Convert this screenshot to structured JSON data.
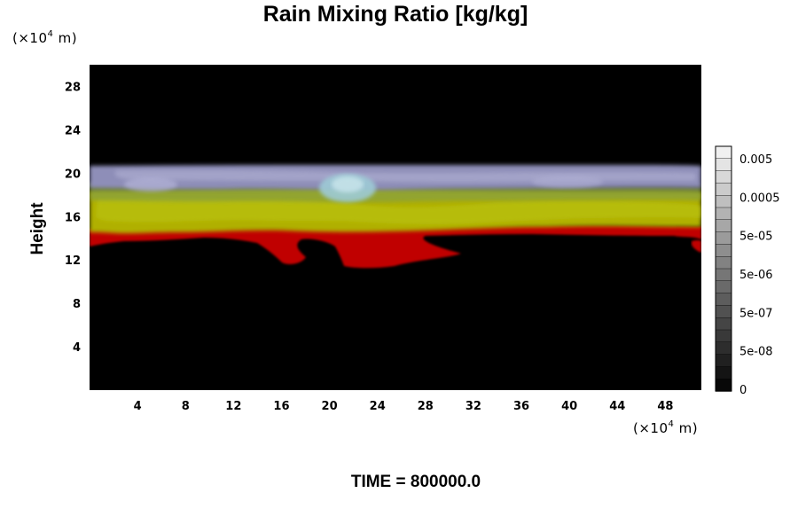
{
  "chart_data": {
    "type": "heatmap",
    "title": "Rain Mixing Ratio [kg/kg]",
    "ylabel": "Height",
    "y_unit": {
      "prefix": "(×10",
      "exp": "4",
      "suffix": " m)"
    },
    "x_unit": {
      "prefix": "(×10",
      "exp": "4",
      "suffix": " m)"
    },
    "xlim": [
      0,
      51
    ],
    "ylim": [
      0,
      30
    ],
    "x_ticks": [
      4,
      8,
      12,
      16,
      20,
      24,
      28,
      32,
      36,
      40,
      44,
      48
    ],
    "y_ticks": [
      4,
      8,
      12,
      16,
      20,
      24,
      28
    ],
    "colorbar": {
      "labels": [
        "0.005",
        "0.0005",
        "5e-05",
        "5e-06",
        "5e-07",
        "5e-08",
        "0"
      ]
    },
    "time_label": "TIME = 800000.0"
  }
}
